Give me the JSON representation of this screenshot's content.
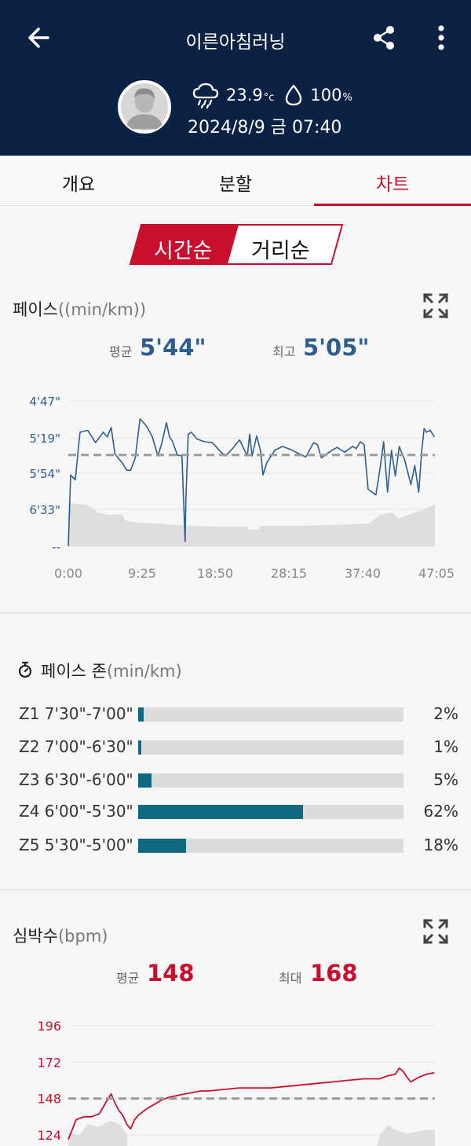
{
  "header": {
    "title": "이른아침러닝",
    "temperature": "23.9",
    "temperature_unit": "°c",
    "humidity": "100",
    "humidity_unit": "%",
    "datetime": "2024/8/9 금 07:40"
  },
  "tabs": [
    "개요",
    "분할",
    "차트"
  ],
  "active_tab": 2,
  "segment": {
    "left": "시간순",
    "right": "거리순",
    "selected": "left"
  },
  "pace": {
    "title": "페이스",
    "unit": "((min/km))",
    "avg_label": "평균",
    "avg_value": "5'44\"",
    "best_label": "최고",
    "best_value": "5'05\""
  },
  "zones": {
    "title": "페이스 존",
    "unit": "(min/km)",
    "items": [
      {
        "zone": "Z1",
        "range": "7'30\"-7'00\"",
        "pct": 2,
        "pct_label": "2%"
      },
      {
        "zone": "Z2",
        "range": "7'00\"-6'30\"",
        "pct": 1,
        "pct_label": "1%"
      },
      {
        "zone": "Z3",
        "range": "6'30\"-6'00\"",
        "pct": 5,
        "pct_label": "5%"
      },
      {
        "zone": "Z4",
        "range": "6'00\"-5'30\"",
        "pct": 62,
        "pct_label": "62%"
      },
      {
        "zone": "Z5",
        "range": "5'30\"-5'00\"",
        "pct": 18,
        "pct_label": "18%"
      }
    ]
  },
  "heart": {
    "title": "심박수",
    "unit": "(bpm)",
    "avg_label": "평균",
    "avg_value": "148",
    "max_label": "최대",
    "max_value": "168"
  },
  "colors": {
    "header_bg": "#0b2245",
    "accent_red": "#c8102e",
    "pace_blue": "#2c5f8f",
    "zone_teal": "#0f6a80",
    "avg_line": "#9a9a9a",
    "elevation": "#dedede"
  },
  "icons": [
    "back-arrow-icon",
    "share-icon",
    "more-vert-icon",
    "avatar-icon",
    "cloud-rain-icon",
    "water-drop-icon",
    "expand-icon",
    "stopwatch-icon"
  ],
  "chart_data": [
    {
      "type": "line",
      "title": "페이스((min/km))",
      "x_ticks": [
        "0:00",
        "9:25",
        "18:50",
        "28:15",
        "37:40",
        "47:05"
      ],
      "y_ticks": [
        "4'47\"",
        "5'19\"",
        "5'54\"",
        "6'33\"",
        "--"
      ],
      "x_range_min": [
        0,
        47.08
      ],
      "y_range_sec_per_km": [
        287,
        440
      ],
      "y_inverted": true,
      "average_sec_per_km": 344,
      "series": [
        {
          "x": [
            0,
            0.3,
            0.9,
            1.5,
            2.5,
            3.5,
            4.5,
            5.0,
            5.5,
            6.0,
            7.0,
            7.5,
            8.0,
            8.6,
            9.2,
            10.0,
            10.8,
            11.5,
            12.0,
            12.6,
            13.0,
            13.4,
            14.0,
            14.6,
            15.0,
            15.1,
            15.4,
            15.8,
            16.5,
            17.5,
            18.5,
            19.5,
            20.2,
            21.0,
            22.0,
            23.0,
            23.3,
            23.6,
            24.2,
            24.7,
            25.0,
            25.5,
            26.5,
            27.5,
            28.5,
            29.5,
            30.5,
            31.5,
            32.0,
            32.5,
            33.5,
            34.5,
            35.5,
            36.5,
            37.0,
            37.5,
            38.0,
            38.5,
            39.5,
            40.0,
            40.5,
            41.0,
            41.5,
            42.0,
            42.5,
            43.2,
            44.0,
            44.5,
            45.0,
            45.4,
            45.7,
            46.0,
            46.5,
            47.0
          ],
          "y": [
            440,
            365,
            370,
            320,
            318,
            331,
            320,
            325,
            315,
            343,
            353,
            360,
            360,
            347,
            306,
            313,
            325,
            345,
            332,
            310,
            325,
            330,
            344,
            345,
            435,
            390,
            322,
            320,
            327,
            330,
            331,
            340,
            345,
            338,
            328,
            345,
            322,
            345,
            324,
            340,
            365,
            352,
            339,
            335,
            338,
            342,
            346,
            331,
            333,
            347,
            341,
            336,
            341,
            335,
            337,
            330,
            333,
            380,
            386,
            360,
            330,
            383,
            339,
            366,
            335,
            349,
            375,
            355,
            383,
            339,
            316,
            320,
            318,
            325
          ],
          "name": ""
        }
      ]
    },
    {
      "type": "line",
      "title": "심박수(bpm)",
      "y_ticks": [
        "196",
        "172",
        "148",
        "124"
      ],
      "y_range": [
        120,
        196
      ],
      "average": 148,
      "series": [
        {
          "x": [
            0,
            1,
            2,
            3,
            4,
            5,
            5.5,
            6,
            6.5,
            7,
            7.5,
            8,
            8.5,
            9,
            10,
            11,
            12,
            13,
            14,
            15,
            16,
            17,
            18,
            20,
            22,
            24,
            26,
            28,
            30,
            32,
            34,
            36,
            38,
            40,
            41,
            42,
            42.5,
            43,
            43.5,
            44,
            45,
            46,
            47
          ],
          "y": [
            121,
            134,
            136,
            136,
            138,
            147,
            151,
            145,
            140,
            137,
            131,
            128,
            134,
            137,
            141,
            144,
            147,
            149,
            150,
            151,
            152,
            153,
            153,
            154,
            155,
            155,
            155,
            156,
            157,
            158,
            159,
            160,
            161,
            161,
            163,
            164,
            168,
            166,
            162,
            159,
            162,
            164,
            165
          ],
          "name": ""
        }
      ]
    }
  ]
}
